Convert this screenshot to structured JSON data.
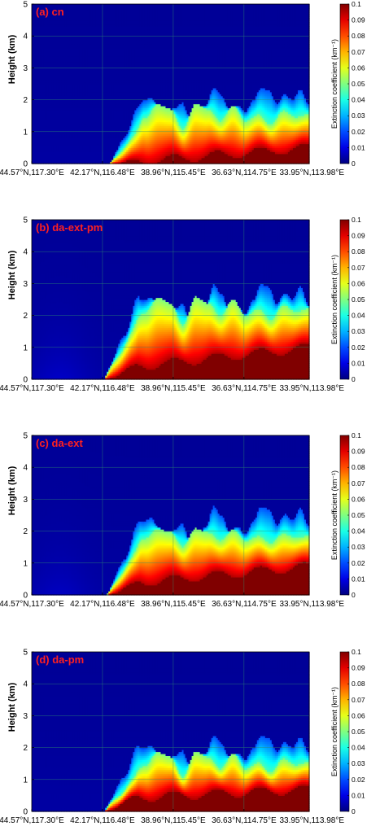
{
  "chart_data": [
    {
      "type": "heatmap",
      "title": "(a) cn",
      "ylabel": "Height (km)",
      "ylim": [
        0,
        5
      ],
      "yticks": [
        "0",
        "1",
        "2",
        "3",
        "4",
        "5"
      ],
      "xticks": [
        "44.57°N,117.30°E",
        "42.17°N,116.48°E",
        "38.96°N,115.45°E",
        "36.63°N,114.75°E",
        "33.95°N,113.98°E"
      ],
      "colorbar": {
        "label": "Extinction coefficient (km⁻¹)",
        "range": [
          0,
          0.1
        ],
        "ticks": [
          "0",
          "0.01",
          "0.02",
          "0.03",
          "0.04",
          "0.05",
          "0.06",
          "0.07",
          "0.08",
          "0.09",
          "0.1"
        ]
      },
      "grid": true,
      "colormap": "jet",
      "field": {
        "fraction_start": 0.28,
        "layer_top_km": [
          0.0,
          0.5
        ],
        "aerosol_top_km": [
          0.9,
          1.9
        ],
        "plume_top_km": 2.4,
        "background": 0.0
      }
    },
    {
      "type": "heatmap",
      "title": "(b) da-ext-pm",
      "ylabel": "Height (km)",
      "ylim": [
        0,
        5
      ],
      "yticks": [
        "0",
        "1",
        "2",
        "3",
        "4",
        "5"
      ],
      "xticks": [
        "44.57°N,117.30°E",
        "42.17°N,116.48°E",
        "38.96°N,115.45°E",
        "36.63°N,114.75°E",
        "33.95°N,113.98°E"
      ],
      "colorbar": {
        "label": "Extinction coefficient (km⁻¹)",
        "range": [
          0,
          0.1
        ],
        "ticks": [
          "0",
          "0.01",
          "0.02",
          "0.03",
          "0.04",
          "0.05",
          "0.06",
          "0.07",
          "0.08",
          "0.09",
          "0.1"
        ]
      },
      "grid": true,
      "colormap": "jet",
      "field": {
        "fraction_start": 0.26,
        "layer_top_km": [
          0.3,
          1.0
        ],
        "aerosol_top_km": [
          1.5,
          2.6
        ],
        "plume_top_km": 3.0,
        "background": 0.035
      }
    },
    {
      "type": "heatmap",
      "title": "(c) da-ext",
      "ylabel": "Height (km)",
      "ylim": [
        0,
        5
      ],
      "yticks": [
        "0",
        "1",
        "2",
        "3",
        "4",
        "5"
      ],
      "xticks": [
        "44.57°N,117.30°E",
        "42.17°N,116.48°E",
        "38.96°N,115.45°E",
        "36.63°N,114.75°E",
        "33.95°N,113.98°E"
      ],
      "colorbar": {
        "label": "Extinction coefficient (km⁻¹)",
        "range": [
          0,
          0.1
        ],
        "ticks": [
          "0",
          "0.01",
          "0.02",
          "0.03",
          "0.04",
          "0.05",
          "0.06",
          "0.07",
          "0.08",
          "0.09",
          "0.1"
        ]
      },
      "grid": true,
      "colormap": "jet",
      "field": {
        "fraction_start": 0.27,
        "layer_top_km": [
          0.3,
          0.9
        ],
        "aerosol_top_km": [
          1.4,
          2.1
        ],
        "plume_top_km": 2.8,
        "background": 0.03
      }
    },
    {
      "type": "heatmap",
      "title": "(d) da-pm",
      "ylabel": "Height (km)",
      "ylim": [
        0,
        5
      ],
      "yticks": [
        "0",
        "1",
        "2",
        "3",
        "4",
        "5"
      ],
      "xticks": [
        "44.57°N,117.30°E",
        "42.17°N,116.48°E",
        "38.96°N,115.45°E",
        "36.63°N,114.75°E",
        "33.95°N,113.98°E"
      ],
      "colorbar": {
        "label": "Extinction coefficient (km⁻¹)",
        "range": [
          0,
          0.1
        ],
        "ticks": [
          "0",
          "0.01",
          "0.02",
          "0.03",
          "0.04",
          "0.05",
          "0.06",
          "0.07",
          "0.08",
          "0.09",
          "0.1"
        ]
      },
      "grid": true,
      "colormap": "jet",
      "field": {
        "fraction_start": 0.26,
        "layer_top_km": [
          0.4,
          0.7
        ],
        "aerosol_top_km": [
          0.9,
          1.9
        ],
        "plume_top_km": 2.4,
        "background": 0.0
      }
    }
  ]
}
